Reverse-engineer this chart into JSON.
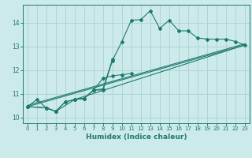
{
  "xlabel": "Humidex (Indice chaleur)",
  "bg_color": "#cdeaea",
  "grid_color": "#afd4d4",
  "line_color": "#1e7a6e",
  "xlim": [
    -0.5,
    23.5
  ],
  "ylim": [
    9.75,
    14.75
  ],
  "xticks": [
    0,
    1,
    2,
    3,
    4,
    5,
    6,
    7,
    8,
    9,
    10,
    11,
    12,
    13,
    14,
    15,
    16,
    17,
    18,
    19,
    20,
    21,
    22,
    23
  ],
  "yticks": [
    10,
    11,
    12,
    13,
    14
  ],
  "curve_main_x": [
    0,
    2,
    3,
    4,
    5,
    6,
    7,
    8,
    9,
    10,
    11,
    12,
    13,
    14,
    15,
    16,
    17,
    18,
    19,
    20,
    21,
    22,
    23
  ],
  "curve_main_y": [
    10.45,
    10.4,
    10.25,
    10.65,
    10.75,
    10.8,
    11.15,
    11.15,
    12.4,
    13.2,
    14.1,
    14.12,
    14.5,
    13.75,
    14.1,
    13.65,
    13.65,
    13.35,
    13.3,
    13.3,
    13.3,
    13.2,
    13.05
  ],
  "curve2_x": [
    0,
    1,
    2,
    3,
    4,
    5,
    6,
    7,
    8,
    9
  ],
  "curve2_y": [
    10.45,
    10.75,
    10.4,
    10.25,
    10.65,
    10.75,
    10.8,
    11.15,
    11.2,
    12.45
  ],
  "curve3_x": [
    0,
    2,
    3,
    5,
    6,
    7,
    8,
    9,
    10,
    11
  ],
  "curve3_y": [
    10.45,
    10.4,
    10.25,
    10.75,
    10.8,
    11.15,
    11.65,
    11.75,
    11.8,
    11.85
  ],
  "line1_x": [
    0,
    23
  ],
  "line1_y": [
    10.45,
    13.05
  ],
  "line2_x": [
    0,
    23
  ],
  "line2_y": [
    10.45,
    13.05
  ],
  "line3_x": [
    5,
    23
  ],
  "line3_y": [
    10.75,
    13.05
  ]
}
